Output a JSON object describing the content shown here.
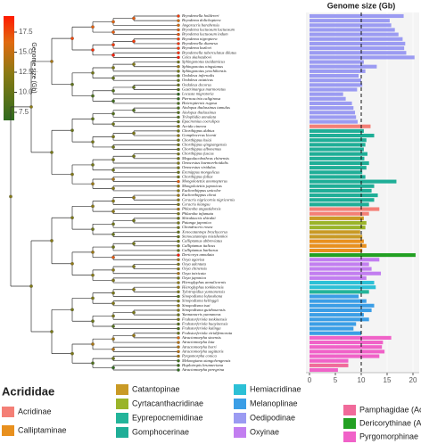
{
  "chart_data": {
    "type": "bar",
    "orientation": "horizontal",
    "title": "Genome size (Gb)",
    "categories": [
      "Bryodemella holdereri",
      "Bryodema dolichoptera",
      "Angaracris barabensis",
      "Bryodema luctuosum luctuosum",
      "Bryodema luctuosum indum",
      "Bryodema nigroptera",
      "Bryodemella diamesa",
      "Bryodema kozlovi",
      "Bryodemella tuberculatus dilutus",
      "Celes skalozubovi",
      "Sphingonotus tzaidamicus",
      "Sphingonotus ningsianus",
      "Sphingonotus yenchihensis",
      "Oedaleus infernalis",
      "Oedaleus asiaticus",
      "Oedaleus decorus",
      "Gastrimargus marmoratus",
      "Locusta migratoria",
      "Pternoscirta caliginosa",
      "Heteropternis rugosa",
      "Aiolopus thalassinus tamulus",
      "Aiolopus thalassinus",
      "Trilophidia annulata",
      "Epacromius coerulipes",
      "Acrida cinerea",
      "Chorthippus dubius",
      "Gomphocerus licenti",
      "Chorthippus hsiai",
      "Chorthippus qingzangensis",
      "Chorthippus albonemus",
      "Chorthippus fuscus",
      "Megaulacobothrus chinensis",
      "Omocestus haemorrhoidalis",
      "Omocestus viridulus",
      "Eremippus mongolicus",
      "Chorthippus fallax",
      "Mongolotettix anomopterus",
      "Mongolotettix japonicus",
      "Euchorthippus unicolor",
      "Euchorthippus cheui",
      "Ceracris nigricornis nigricornis",
      "Ceracris kiangsu",
      "Phlaeoba angustidorsis",
      "Phlaeoba infumata",
      "Shirakiacris shirakii",
      "Patanga japonica",
      "Chondracris rosea",
      "Xenocatantops brachycerus",
      "Stenocatantops mistshenkoi",
      "Calliptamus abbreviatus",
      "Calliptamus italicus",
      "Calliptamus barbarus",
      "Dericorys annulata",
      "Oxya agavisa",
      "Oxya adentata",
      "Oxya chinensis",
      "Oxya intricata",
      "Oxya japonica",
      "Hieroglyphus annulicornis",
      "Hieroglyphus tonkinensis",
      "Tylotropidius yunnanensis",
      "Sinopodisma lofaoshana",
      "Sinopodisma kelloggii",
      "Sinopodisma tsai",
      "Sinopodisma guizhouensis",
      "Yunnanacris yunnaneus",
      "Fruhstorferiola tonkinensis",
      "Fruhstorferiola huayinensis",
      "Fruhstorferiola kulinga",
      "Fruhstorferiola viridifemorata",
      "Atractomorpha sinensis",
      "Atractomorpha lata",
      "Atractomorpha burri",
      "Atractomorpha sagittaris",
      "Pyrgomorpha conica",
      "Mekongiana xiangchengensis",
      "Haplotropis brunneriana",
      "Atractomorpha peregrina"
    ],
    "values": [
      18.2,
      15.5,
      15.8,
      16.5,
      17.2,
      18,
      18.5,
      18.3,
      18.7,
      20.3,
      10.5,
      13,
      10.8,
      9.5,
      10,
      10.2,
      9.2,
      6.5,
      7,
      8.2,
      8.5,
      8.8,
      9,
      9.3,
      11.8,
      10.5,
      12.5,
      11,
      10.8,
      10.5,
      11.2,
      10.6,
      11.5,
      11,
      10.2,
      10.8,
      16.8,
      12.5,
      12,
      13.2,
      12.5,
      11.5,
      13.5,
      11.5,
      10.5,
      11,
      10.8,
      9.8,
      10.2,
      10.5,
      11,
      10.2,
      20.5,
      13.5,
      11.5,
      12,
      13.8,
      11,
      12.5,
      12.8,
      11.5,
      9.5,
      11,
      12.5,
      12,
      10.5,
      11.5,
      9,
      8.5,
      10,
      15.8,
      14.2,
      14,
      14.5,
      13.5,
      7.5,
      7.5,
      5.5
    ],
    "bar_colors": [
      "#9b9bf2",
      "#9b9bf2",
      "#9b9bf2",
      "#9b9bf2",
      "#9b9bf2",
      "#9b9bf2",
      "#9b9bf2",
      "#9b9bf2",
      "#9b9bf2",
      "#9b9bf2",
      "#9b9bf2",
      "#9b9bf2",
      "#9b9bf2",
      "#9b9bf2",
      "#9b9bf2",
      "#9b9bf2",
      "#9b9bf2",
      "#9b9bf2",
      "#9b9bf2",
      "#9b9bf2",
      "#9b9bf2",
      "#9b9bf2",
      "#9b9bf2",
      "#9b9bf2",
      "#f47f76",
      "#1fae97",
      "#1fae97",
      "#1fae97",
      "#1fae97",
      "#1fae97",
      "#1fae97",
      "#1fae97",
      "#1fae97",
      "#1fae97",
      "#1fae97",
      "#1fae97",
      "#1fae97",
      "#1fae97",
      "#1fae97",
      "#1fae97",
      "#1fae97",
      "#1fae97",
      "#f47f76",
      "#f47f76",
      "#c99a25",
      "#9ab42a",
      "#9ab42a",
      "#c99a25",
      "#c99a25",
      "#e8901e",
      "#e8901e",
      "#e8901e",
      "#22a022",
      "#c27ef0",
      "#c27ef0",
      "#c27ef0",
      "#c27ef0",
      "#c27ef0",
      "#2cc0d6",
      "#2cc0d6",
      "#23b49a",
      "#3b9ee6",
      "#3b9ee6",
      "#3b9ee6",
      "#3b9ee6",
      "#3b9ee6",
      "#3b9ee6",
      "#3b9ee6",
      "#3b9ee6",
      "#3b9ee6",
      "#f062c8",
      "#f062c8",
      "#f062c8",
      "#f062c8",
      "#f062c8",
      "#f062c8",
      "#f06a9a",
      "#f062c8"
    ],
    "xlim": [
      0,
      21
    ],
    "xticks": [
      0,
      5,
      10,
      15,
      20
    ],
    "ref_line": 10,
    "colorbar": {
      "title": "Genome size (Gb)",
      "lim": [
        6.5,
        19.5
      ],
      "ticks": [
        17.5,
        {
          "value": 15,
          "label": "15.0"
        },
        12.5,
        {
          "value": 10,
          "label": "10.0"
        },
        7.5
      ]
    },
    "legend": {
      "title": "Acrididae",
      "items": [
        {
          "name": "Acridinae",
          "color": "#f47f76"
        },
        {
          "name": "Calliptaminae",
          "color": "#e8901e"
        },
        {
          "name": "Catantopinae",
          "color": "#c99a25"
        },
        {
          "name": "Cyrtacanthacridinae",
          "color": "#9ab42a"
        },
        {
          "name": "Eyprepocnemidinae",
          "color": "#23b49a"
        },
        {
          "name": "Gomphocerinae",
          "color": "#1fae97"
        },
        {
          "name": "Hemiacridinae",
          "color": "#2cc0d6"
        },
        {
          "name": "Melanoplinae",
          "color": "#3b9ee6"
        },
        {
          "name": "Oedipodinae",
          "color": "#9b9bf2"
        },
        {
          "name": "Oxyinae",
          "color": "#c27ef0"
        },
        {
          "name": "Pamphagidae (Acridoidea)",
          "color": "#f06a9a"
        },
        {
          "name": "Dericorythinae (Acridoidea)",
          "color": "#22a022"
        },
        {
          "name": "Pyrgomorphinae (Pyrgomorphoidea)",
          "color": "#f062c8"
        }
      ]
    }
  }
}
